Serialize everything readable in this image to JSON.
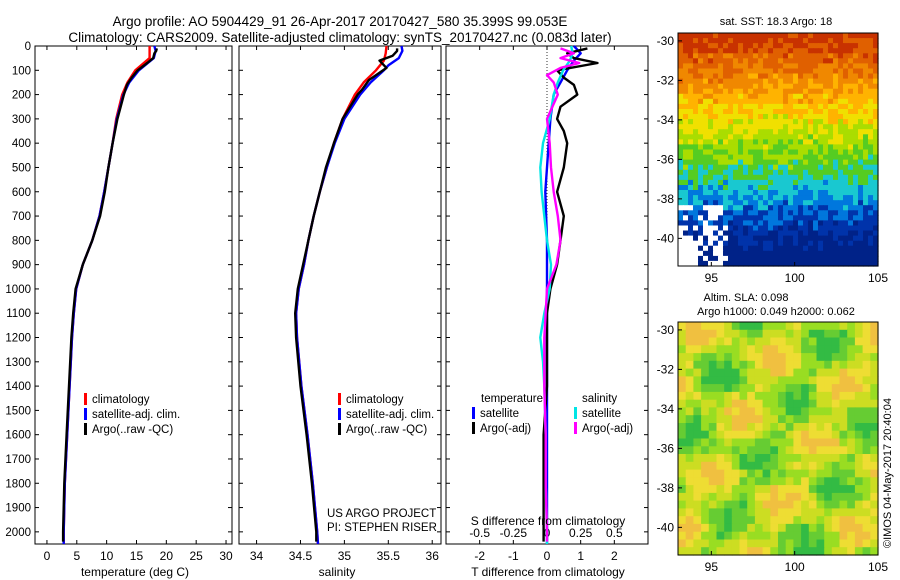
{
  "header": {
    "line1": "Argo profile: AO 5904429_91 26-Apr-2017 20170427_580 35.399S 99.053E",
    "line2": "Climatology: CARS2009. Satellite-adjusted climatology: synTS_20170427.nc (0.083d later)"
  },
  "footer": {
    "project": "US ARGO PROJECT",
    "pi": "PI: STEPHEN RISER",
    "stamp": "©IMOS 04-May-2017 20:40:04"
  },
  "colors": {
    "climatology": "#ff0000",
    "satellite": "#0000ff",
    "argo": "#000000",
    "salinity_satellite": "#00e5e5",
    "salinity_argo": "#ff00ff"
  },
  "chart_data": [
    {
      "type": "line",
      "xlabel": "temperature (deg C)",
      "ylabel": "",
      "xlim": [
        -2,
        31
      ],
      "ylim": [
        2050,
        0
      ],
      "xticks": [
        0,
        5,
        10,
        15,
        20,
        25,
        30
      ],
      "yticks": [
        0,
        100,
        200,
        300,
        400,
        500,
        600,
        700,
        800,
        900,
        1000,
        1100,
        1200,
        1300,
        1400,
        1500,
        1600,
        1700,
        1800,
        1900,
        2000
      ],
      "legend": [
        "climatology",
        "satellite-adj. clim.",
        "Argo(..raw -QC)"
      ],
      "legend_position": "lower-middle",
      "series": [
        {
          "name": "climatology",
          "depth": [
            0,
            50,
            100,
            150,
            200,
            300,
            400,
            500,
            600,
            700,
            800,
            900,
            1000,
            1100,
            1200,
            1400,
            1600,
            1800,
            2000,
            2050
          ],
          "values": [
            17.2,
            17.2,
            14.8,
            13.5,
            12.6,
            11.6,
            11.0,
            10.3,
            9.6,
            8.8,
            7.6,
            6.0,
            4.9,
            4.5,
            4.2,
            3.8,
            3.4,
            3.0,
            2.8,
            2.8
          ]
        },
        {
          "name": "satellite-adj. clim.",
          "depth": [
            0,
            20,
            50,
            100,
            150,
            200,
            300,
            400,
            500,
            600,
            700,
            800,
            900,
            1000,
            1100,
            1200,
            1400,
            1600,
            1800,
            2000,
            2050
          ],
          "values": [
            18.0,
            18.2,
            17.9,
            15.4,
            13.8,
            12.8,
            11.7,
            11.0,
            10.3,
            9.6,
            8.8,
            7.6,
            6.0,
            4.9,
            4.5,
            4.2,
            3.8,
            3.4,
            3.0,
            2.8,
            2.8
          ]
        },
        {
          "name": "Argo(..raw -QC)",
          "depth": [
            10,
            20,
            30,
            50,
            70,
            100,
            130,
            160,
            200,
            300,
            400,
            500,
            600,
            700,
            800,
            900,
            1000,
            1100,
            1200,
            1400,
            1600,
            1800,
            2000,
            2040
          ],
          "values": [
            18.4,
            18.3,
            18.0,
            17.8,
            16.8,
            15.2,
            14.2,
            13.4,
            12.9,
            11.8,
            11.0,
            10.3,
            9.7,
            8.9,
            7.6,
            6.0,
            4.8,
            4.4,
            4.1,
            3.7,
            3.3,
            2.9,
            2.7,
            2.7
          ]
        }
      ]
    },
    {
      "type": "line",
      "xlabel": "salinity",
      "ylabel": "",
      "xlim": [
        33.8,
        36.1
      ],
      "ylim": [
        2050,
        0
      ],
      "xticks": [
        34,
        34.5,
        35,
        35.5,
        36
      ],
      "legend": [
        "climatology",
        "satellite-adj. clim.",
        "Argo(..raw -QC)"
      ],
      "legend_position": "lower-right",
      "series": [
        {
          "name": "climatology",
          "depth": [
            0,
            30,
            60,
            100,
            150,
            200,
            300,
            400,
            500,
            600,
            700,
            800,
            900,
            1000,
            1100,
            1200,
            1400,
            1600,
            1800,
            2000,
            2050
          ],
          "values": [
            35.48,
            35.47,
            35.45,
            35.36,
            35.22,
            35.12,
            34.98,
            34.88,
            34.8,
            34.72,
            34.65,
            34.59,
            34.54,
            34.48,
            34.45,
            34.46,
            34.51,
            34.58,
            34.64,
            34.69,
            34.7
          ]
        },
        {
          "name": "satellite-adj. clim.",
          "depth": [
            0,
            20,
            50,
            80,
            100,
            150,
            200,
            300,
            400,
            500,
            600,
            700,
            800,
            900,
            1000,
            1100,
            1200,
            1400,
            1600,
            1800,
            2000,
            2050
          ],
          "values": [
            35.65,
            35.66,
            35.62,
            35.5,
            35.45,
            35.3,
            35.18,
            35.0,
            34.89,
            34.8,
            34.72,
            34.65,
            34.59,
            34.54,
            34.48,
            34.45,
            34.46,
            34.51,
            34.58,
            34.64,
            34.69,
            34.7
          ]
        },
        {
          "name": "Argo(..raw -QC)",
          "depth": [
            10,
            20,
            40,
            60,
            90,
            110,
            140,
            180,
            200,
            300,
            400,
            500,
            600,
            700,
            800,
            900,
            1000,
            1100,
            1200,
            1400,
            1600,
            1800,
            2000,
            2040
          ],
          "values": [
            35.6,
            35.6,
            35.55,
            35.4,
            35.48,
            35.4,
            35.28,
            35.2,
            35.15,
            34.98,
            34.88,
            34.79,
            34.72,
            34.65,
            34.59,
            34.53,
            34.47,
            34.44,
            34.45,
            34.5,
            34.57,
            34.63,
            34.68,
            34.68
          ]
        }
      ]
    },
    {
      "type": "line",
      "xlabel": "T difference from climatology",
      "ylabel": "",
      "top_axis_label": "S difference from climatology",
      "xlim": [
        -3,
        3
      ],
      "ylim": [
        2050,
        0
      ],
      "xticks": [
        -2,
        -1,
        0,
        1,
        2
      ],
      "s_tick_labels": [
        "-0.5",
        "-0.25",
        "0",
        "0.25",
        "0.5"
      ],
      "legend_titles": [
        "temperature",
        "salinity"
      ],
      "legend": [
        "satellite",
        "Argo(-adj)",
        "satellite",
        "Argo(-adj)"
      ],
      "legend_position": "lower-middle",
      "series": [
        {
          "name": "satellite",
          "quantity": "temperature",
          "depth": [
            0,
            30,
            60,
            100,
            150,
            200,
            300,
            400,
            500,
            600,
            800,
            1000,
            1200,
            1400,
            1600,
            1800,
            2000,
            2050
          ],
          "values": [
            0.8,
            1.0,
            0.8,
            0.6,
            0.4,
            0.2,
            0.1,
            0.05,
            0.0,
            -0.05,
            0.0,
            0.0,
            0.0,
            0.0,
            0.0,
            0.0,
            0.0,
            0.0
          ]
        },
        {
          "name": "Argo(-adj)",
          "quantity": "temperature",
          "depth": [
            10,
            30,
            50,
            70,
            100,
            130,
            160,
            200,
            250,
            300,
            350,
            400,
            500,
            600,
            700,
            800,
            900,
            1000,
            1100,
            1200,
            1400,
            1600,
            1800,
            2000,
            2040
          ],
          "values": [
            1.2,
            0.6,
            0.8,
            1.5,
            0.3,
            0.5,
            0.8,
            0.9,
            0.4,
            0.3,
            0.5,
            0.6,
            0.5,
            0.3,
            0.5,
            0.4,
            0.3,
            0.1,
            0.0,
            0.0,
            0.0,
            -0.1,
            -0.1,
            -0.1,
            -0.1
          ]
        },
        {
          "name": "satellite",
          "quantity": "salinity",
          "depth": [
            0,
            30,
            60,
            100,
            150,
            200,
            300,
            400,
            500,
            600,
            700,
            800,
            900,
            1000,
            1100,
            1200,
            1300,
            1400,
            1600,
            1800,
            2000,
            2050
          ],
          "values": [
            0.18,
            0.19,
            0.17,
            0.12,
            0.08,
            0.05,
            0.02,
            -0.03,
            -0.05,
            -0.04,
            -0.02,
            0.0,
            0.03,
            0.02,
            -0.02,
            -0.05,
            -0.03,
            -0.02,
            -0.01,
            -0.01,
            0.0,
            0.0
          ]
        },
        {
          "name": "Argo(-adj)",
          "quantity": "salinity",
          "depth": [
            10,
            30,
            50,
            70,
            90,
            120,
            150,
            200,
            300,
            400,
            500,
            600,
            700,
            800,
            900,
            1000,
            1100,
            1200,
            1300,
            1400,
            1600,
            1800,
            2000,
            2040
          ],
          "values": [
            0.1,
            0.2,
            0.1,
            0.24,
            0.1,
            0.0,
            0.05,
            0.08,
            0.0,
            0.02,
            0.03,
            0.05,
            0.08,
            0.1,
            0.07,
            0.0,
            -0.01,
            -0.02,
            -0.02,
            -0.02,
            -0.01,
            -0.01,
            0.0,
            0.0
          ]
        }
      ]
    },
    {
      "type": "heatmap",
      "title": "sat. SST: 18.3 Argo: 18",
      "xlim": [
        93,
        105
      ],
      "ylim": [
        -41.4,
        -29.6
      ],
      "xticks": [
        95,
        100,
        105
      ],
      "yticks": [
        -30,
        -32,
        -34,
        -36,
        -38,
        -40
      ],
      "rows_north_to_south": [
        "#c83200",
        "#e06000",
        "#f08800",
        "#ffb300",
        "#f0e000",
        "#aadd00",
        "#55cc22",
        "#19c8d0",
        "#0077dd",
        "#0033aa",
        "#002288"
      ]
    },
    {
      "type": "heatmap",
      "title_line1": "Altim. SLA: 0.098",
      "title_line2": "Argo h1000: 0.049 h2000: 0.062",
      "xlim": [
        93,
        105
      ],
      "ylim": [
        -41.4,
        -29.6
      ],
      "xticks": [
        95,
        100,
        105
      ],
      "yticks": [
        -30,
        -32,
        -34,
        -36,
        -38,
        -40
      ],
      "palette": [
        "#33bb44",
        "#66cc33",
        "#99dd22",
        "#ccdd22",
        "#eedd33",
        "#f0c040"
      ]
    }
  ]
}
